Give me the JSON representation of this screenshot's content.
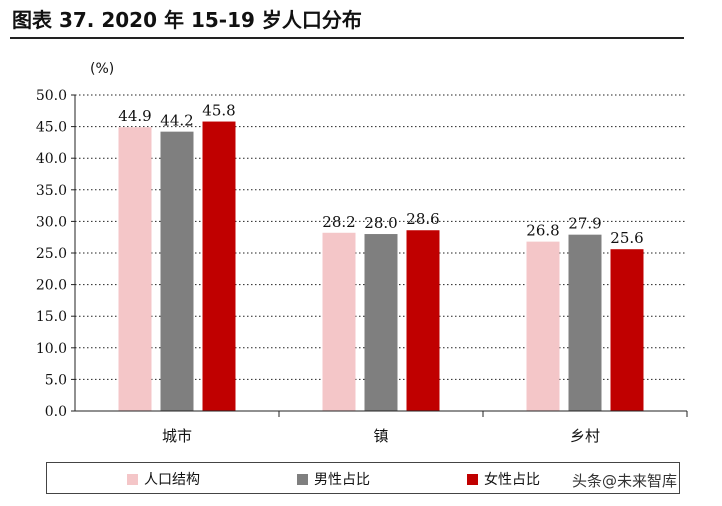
{
  "figure": {
    "title": "图表 37. 2020 年 15-19 岁人口分布",
    "unit": "(%)",
    "watermark": "头条@未来智库"
  },
  "colors": {
    "series_0": "#F4C6C8",
    "series_1": "#7F7F7F",
    "series_2": "#C00000"
  },
  "chart_data": {
    "type": "bar",
    "title": "2020 年 15-19 岁人口分布",
    "xlabel": "",
    "ylabel": "(%)",
    "ylim": [
      0,
      50
    ],
    "yticks": [
      "0.0",
      "5.0",
      "10.0",
      "15.0",
      "20.0",
      "25.0",
      "30.0",
      "35.0",
      "40.0",
      "45.0",
      "50.0"
    ],
    "grid": true,
    "legend_position": "bottom",
    "categories": [
      "城市",
      "镇",
      "乡村"
    ],
    "series": [
      {
        "name": "人口结构",
        "values": [
          44.9,
          28.2,
          26.8
        ],
        "labels": [
          "44.9",
          "28.2",
          "26.8"
        ]
      },
      {
        "name": "男性占比",
        "values": [
          44.2,
          28.0,
          27.9
        ],
        "labels": [
          "44.2",
          "28.0",
          "27.9"
        ]
      },
      {
        "name": "女性占比",
        "values": [
          45.8,
          28.6,
          25.6
        ],
        "labels": [
          "45.8",
          "28.6",
          "25.6"
        ]
      }
    ]
  }
}
